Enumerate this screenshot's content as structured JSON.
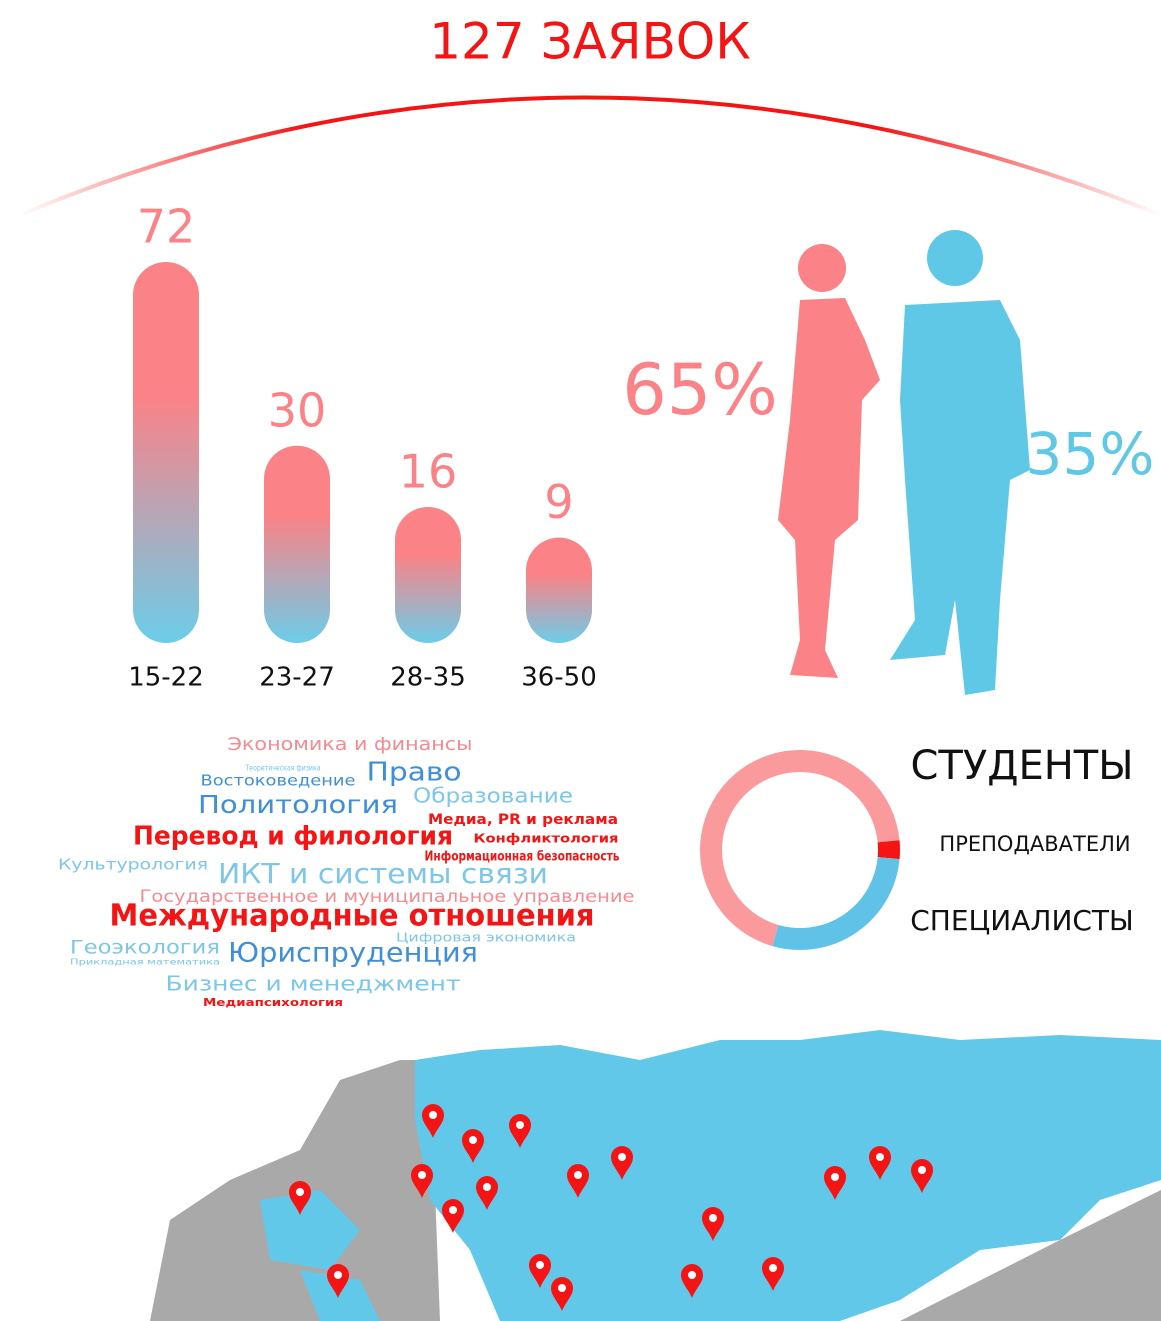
{
  "title": "127 ЗАЯВОК",
  "chart_data": [
    {
      "type": "bar",
      "categories": [
        "15-22",
        "23-27",
        "28-35",
        "36-50"
      ],
      "values": [
        72,
        30,
        16,
        9
      ],
      "colors": [
        "#fb8287",
        "#6ccde9"
      ]
    },
    {
      "type": "pictogram",
      "values": [
        65,
        35
      ],
      "value_labels": [
        "65%",
        "35%"
      ],
      "colors": [
        "#fb8287",
        "#5fc8e6"
      ]
    },
    {
      "type": "pie",
      "categories": [
        "СТУДЕНТЫ",
        "ПРЕПОДАВАТЕЛИ",
        "СПЕЦИАЛИСТЫ"
      ],
      "values": [
        69,
        3,
        28
      ],
      "colors": [
        "#fb9a9d",
        "#f41414",
        "#5fc2e6"
      ]
    }
  ],
  "word_cloud": [
    "Экономика и финансы",
    "Теоретическая физика",
    "Востоковедение",
    "Право",
    "Политология",
    "Образование",
    "Медиа, PR и реклама",
    "Перевод и филология",
    "Конфликтология",
    "Культурология",
    "Информационная безопасность",
    "ИКТ и системы связи",
    "Государственное и муниципальное управление",
    "Международные отношения",
    "Цифровая экономика",
    "Геоэкология",
    "Прикладная математика",
    "Юриспруденция",
    "Бизнес и менеджмент",
    "Медиапсихология"
  ]
}
